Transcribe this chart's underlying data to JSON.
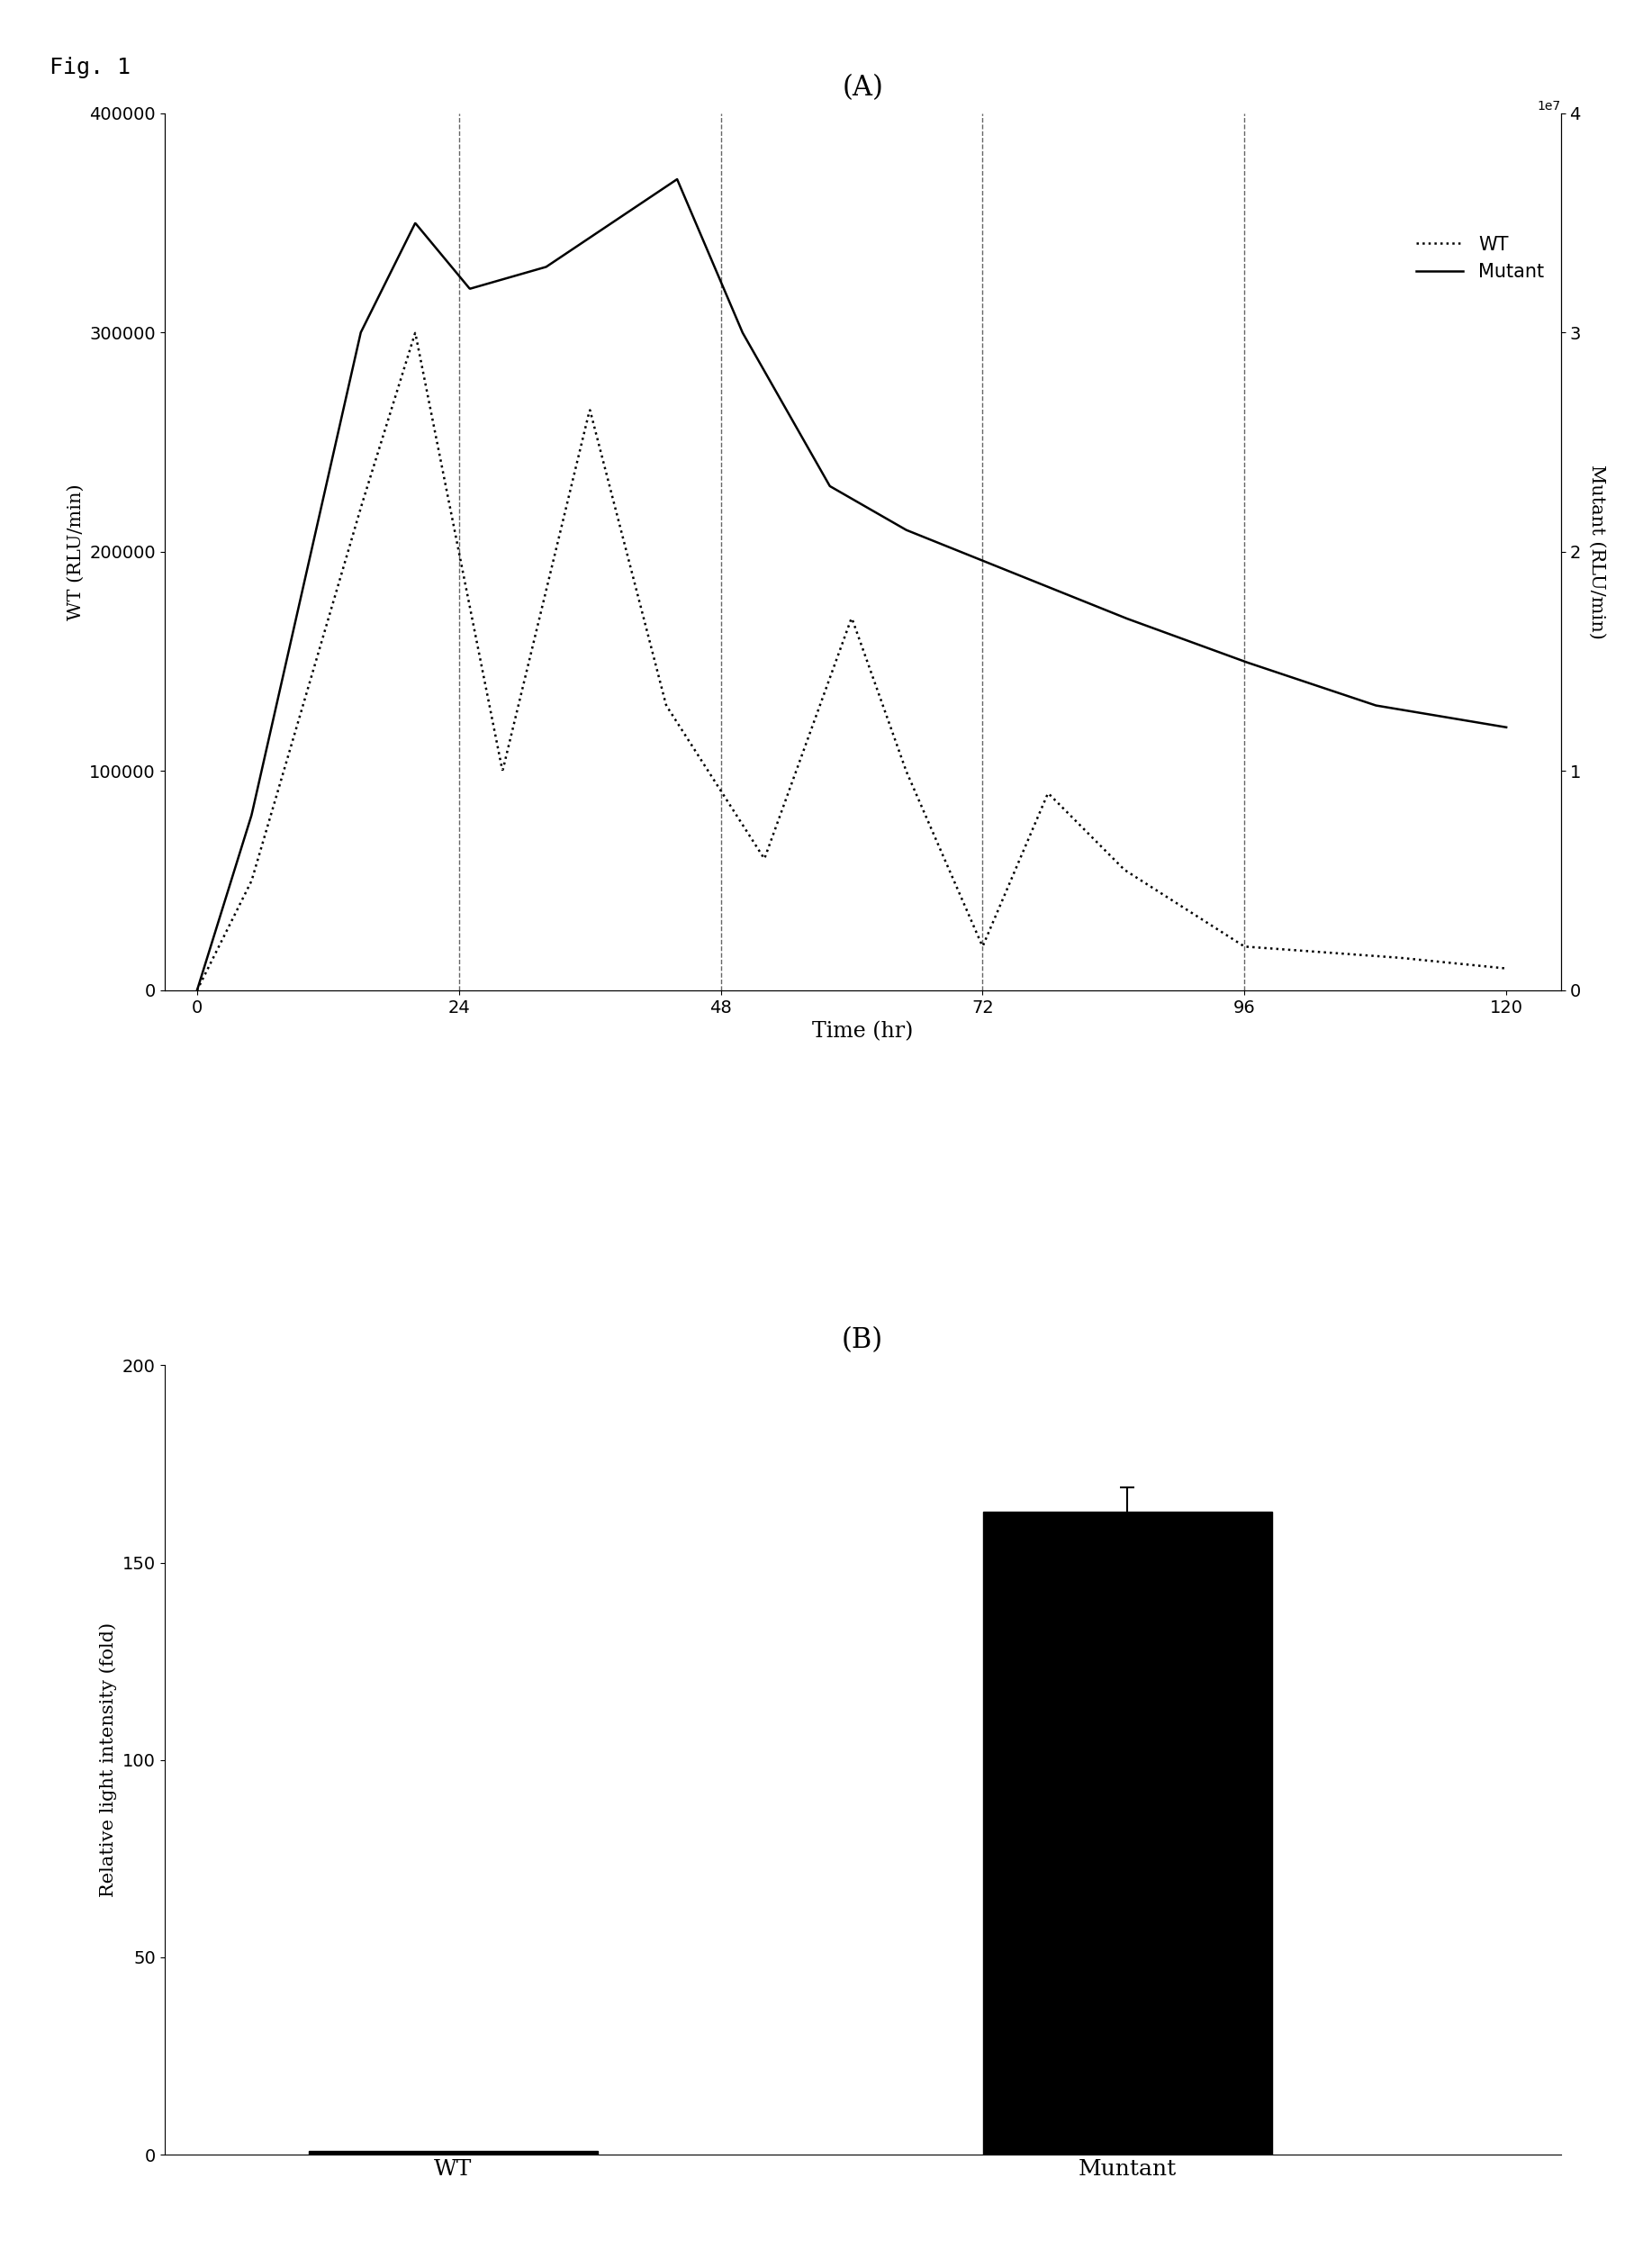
{
  "fig_label": "Fig. 1",
  "panel_A_title": "(A)",
  "panel_B_title": "(B)",
  "time_xlabel": "Time (hr)",
  "wt_ylabel": "WT (RLU/min)",
  "mutant_ylabel": "Mutant (RLU/min)",
  "bar_ylabel": "Relative light intensity (fold)",
  "bar_categories": [
    "WT",
    "Muntant"
  ],
  "bar_values": [
    1.0,
    163.0
  ],
  "bar_error": [
    0.0,
    6.0
  ],
  "wt_ylim": [
    0,
    400000
  ],
  "mutant_ylim": [
    0,
    40000000
  ],
  "bar_ylim": [
    0,
    200
  ],
  "time_xlim": [
    -3,
    125
  ],
  "time_xticks": [
    0,
    24,
    48,
    72,
    96,
    120
  ],
  "wt_yticks": [
    0,
    100000,
    200000,
    300000,
    400000
  ],
  "mutant_yticks": [
    0,
    10000000,
    20000000,
    30000000,
    40000000
  ],
  "bar_yticks": [
    0,
    50,
    100,
    150,
    200
  ],
  "vlines": [
    24,
    48,
    72,
    96
  ],
  "bg_color": "#ffffff",
  "legend_wt": "WT",
  "legend_mutant": "Mutant"
}
